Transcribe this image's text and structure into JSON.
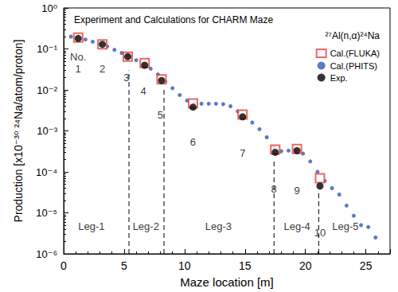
{
  "chart_data": {
    "type": "scatter",
    "title": "Experiment and Calculations for CHARM Maze",
    "subtitle": "²⁷Al(n,α)²⁴Na",
    "x_label": "Maze location [m]",
    "y_label": "Production [x10⁻³⁰ ²⁴Na/atom/proton]",
    "log": "y",
    "grid": false,
    "legend": "upper right",
    "xlim": [
      0,
      27
    ],
    "xticks": [
      0,
      5,
      10,
      15,
      20,
      25
    ],
    "ylim": [
      1e-06,
      1
    ],
    "yticks": [
      {
        "value": 1e-06,
        "label": "10⁻⁶"
      },
      {
        "value": 1e-05,
        "label": "10⁻⁵"
      },
      {
        "value": 0.0001,
        "label": "10⁻⁴"
      },
      {
        "value": 0.001,
        "label": "10⁻³"
      },
      {
        "value": 0.01,
        "label": "10⁻²"
      },
      {
        "value": 0.1,
        "label": "10⁻¹"
      },
      {
        "value": 1,
        "label": "10⁰"
      }
    ],
    "series": [
      {
        "name": "Cal.(FLUKA)",
        "color": "#e8413a",
        "marker": "emptyRect",
        "x": [
          1.2,
          3.2,
          5.3,
          6.7,
          8.1,
          10.7,
          14.8,
          17.5,
          19.3,
          21.2
        ],
        "values": [
          0.19,
          0.13,
          0.065,
          0.045,
          0.018,
          0.0047,
          0.0025,
          0.00035,
          0.00036,
          7e-05
        ]
      },
      {
        "name": "Cal.(PHITS)",
        "color": "#3457b5",
        "marker": "circle",
        "x": [
          0.6,
          1.2,
          1.8,
          2.4,
          3.0,
          3.6,
          4.2,
          4.8,
          5.4,
          6.0,
          6.6,
          7.2,
          7.8,
          8.4,
          9.0,
          9.6,
          10.2,
          10.8,
          11.4,
          12.0,
          12.6,
          13.2,
          13.8,
          14.4,
          15.0,
          15.6,
          16.2,
          16.8,
          17.4,
          18.0,
          18.6,
          19.2,
          19.8,
          20.4,
          21.0,
          21.6,
          22.2,
          22.8,
          23.4,
          24.0,
          24.6,
          25.2,
          25.8
        ],
        "values": [
          0.2,
          0.19,
          0.17,
          0.15,
          0.13,
          0.115,
          0.095,
          0.08,
          0.065,
          0.053,
          0.043,
          0.033,
          0.024,
          0.016,
          0.011,
          0.0075,
          0.0055,
          0.0048,
          0.0046,
          0.0046,
          0.0046,
          0.0045,
          0.004,
          0.003,
          0.0022,
          0.0016,
          0.0011,
          0.0007,
          0.0004,
          0.00032,
          0.00033,
          0.00034,
          0.00028,
          0.00018,
          0.0001,
          6e-05,
          4e-05,
          2.8e-05,
          1.5e-05,
          8.5e-06,
          5e-06,
          4.5e-06,
          2.5e-06
        ]
      },
      {
        "name": "Exp.",
        "color": "#000000",
        "marker": "circle",
        "x": [
          1.2,
          3.2,
          5.3,
          6.7,
          8.1,
          10.7,
          14.8,
          17.5,
          19.3,
          21.2
        ],
        "values": [
          0.18,
          0.13,
          0.065,
          0.04,
          0.017,
          0.0038,
          0.0022,
          0.0003,
          0.00033,
          4.5e-05
        ]
      }
    ],
    "leg_boundaries": [
      {
        "x": 5.4,
        "y_top": 0.03
      },
      {
        "x": 8.3,
        "y_top": 0.01
      },
      {
        "x": 17.4,
        "y_top": 0.0002
      },
      {
        "x": 21.1,
        "y_top": 3e-05
      }
    ],
    "annotations": [
      {
        "text": "No.",
        "x": 1.2,
        "y": 0.064
      },
      {
        "text": "1",
        "x": 1.2,
        "y": 0.032
      },
      {
        "text": "2",
        "x": 3.2,
        "y": 0.032
      },
      {
        "text": "3",
        "x": 5.2,
        "y": 0.02
      },
      {
        "text": "4",
        "x": 6.6,
        "y": 0.0095
      },
      {
        "text": "5",
        "x": 8.0,
        "y": 0.0024
      },
      {
        "text": "6",
        "x": 10.7,
        "y": 0.00053
      },
      {
        "text": "7",
        "x": 14.8,
        "y": 0.00028
      },
      {
        "text": "8",
        "x": 17.4,
        "y": 3.8e-05
      },
      {
        "text": "9",
        "x": 19.3,
        "y": 3.5e-05
      },
      {
        "text": "10",
        "x": 21.2,
        "y": 3.3e-06
      },
      {
        "text": "Leg-1",
        "x": 2.3,
        "y": 4.7e-06
      },
      {
        "text": "Leg-2",
        "x": 6.8,
        "y": 4.7e-06
      },
      {
        "text": "Leg-3",
        "x": 12.8,
        "y": 4.7e-06
      },
      {
        "text": "Leg-4",
        "x": 19.3,
        "y": 4.7e-06
      },
      {
        "text": "Leg-5",
        "x": 23.3,
        "y": 4.7e-06
      }
    ]
  }
}
